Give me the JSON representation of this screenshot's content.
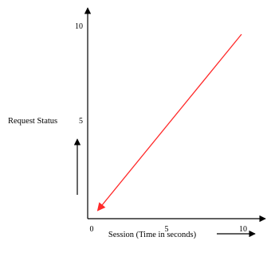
{
  "chart_data": {
    "type": "line",
    "title": "",
    "xlabel": "Session (Time in seconds)",
    "ylabel": "Request Status",
    "xlim": [
      0,
      10
    ],
    "ylim": [
      0,
      10
    ],
    "x_ticks": [
      "0",
      "5",
      "10"
    ],
    "y_ticks": [
      "5",
      "10"
    ],
    "grid": false,
    "legend": "none",
    "series": [
      {
        "points": [
          [
            10,
            9.5
          ],
          [
            0.5,
            0.3
          ]
        ],
        "color": "#ff2a2a",
        "arrow_at_end": true
      }
    ]
  },
  "colors": {
    "axes": "#000000",
    "line": "#ff2a2a"
  }
}
